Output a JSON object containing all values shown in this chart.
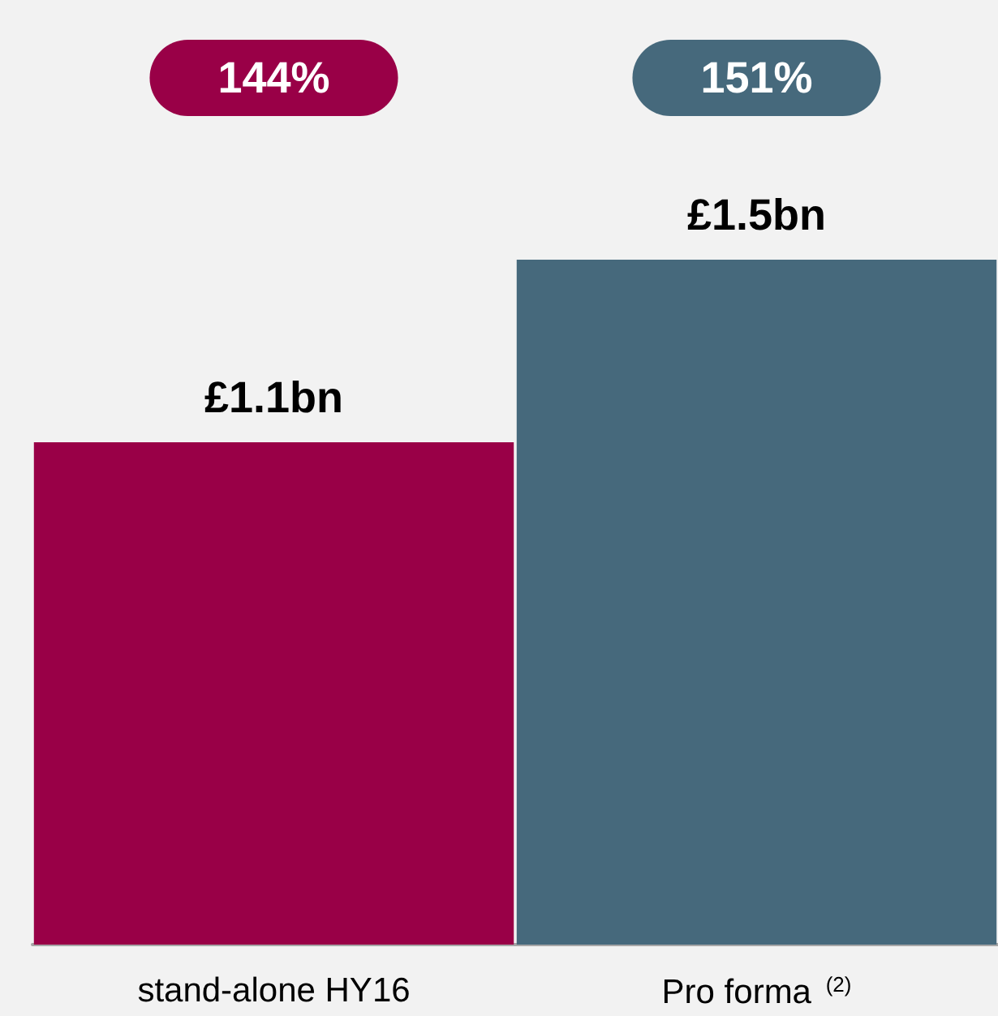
{
  "chart_data": {
    "type": "bar",
    "categories": [
      "stand-alone HY16",
      "Pro forma $^{(2)}$"
    ],
    "values": [
      1.1,
      1.5
    ],
    "colors": [
      "#990047",
      "#46697c"
    ],
    "value_labels": [
      "£1.1bn",
      "£1.5bn"
    ],
    "annotations": [
      "144%",
      "151%"
    ]
  }
}
